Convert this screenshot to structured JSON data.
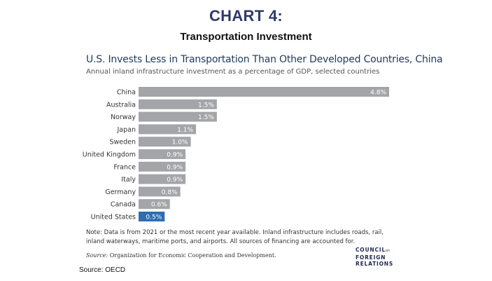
{
  "header": {
    "title": "CHART 4:",
    "subtitle": "Transportation Investment"
  },
  "chart_data": {
    "type": "bar",
    "orientation": "horizontal",
    "title": "U.S. Invests Less in Transportation Than Other Developed Countries, China",
    "subtitle": "Annual inland infrastructure investment as a percentage of GDP, selected countries",
    "categories": [
      "China",
      "Australia",
      "Norway",
      "Japan",
      "Sweden",
      "United Kingdom",
      "France",
      "Italy",
      "Germany",
      "Canada",
      "United States"
    ],
    "values": [
      4.8,
      1.5,
      1.5,
      1.1,
      1.0,
      0.9,
      0.9,
      0.9,
      0.8,
      0.6,
      0.5
    ],
    "labels": [
      "4.8%",
      "1.5%",
      "1.5%",
      "1.1%",
      "1.0%",
      "0.9%",
      "0.9%",
      "0.9%",
      "0.8%",
      "0.6%",
      "0.5%"
    ],
    "highlight": "United States",
    "xlim": [
      0,
      4.8
    ],
    "grid": false,
    "colors": {
      "bar": "#a3a5a8",
      "highlight": "#2f6db3",
      "label": "#ffffff",
      "category": "#333333"
    }
  },
  "note": "Note: Data is from 2021 or the most recent year available. Inland infrastructure includes roads, rail, inland waterways, maritime ports, and airports. All sources of financing are accounted for.",
  "source_label": "Source:",
  "source_text": "Organization for Economic Cooperation and Development.",
  "logo": {
    "line1": "COUNCIL",
    "line1_small": "on",
    "line2": "FOREIGN",
    "line3": "RELATIONS"
  },
  "outer_source": "Source: OECD"
}
